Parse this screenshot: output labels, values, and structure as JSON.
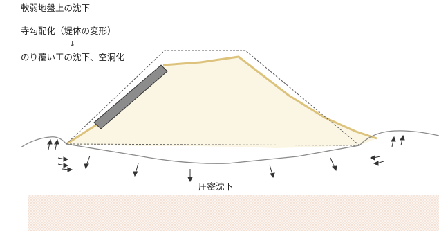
{
  "labels": {
    "title": "軟弱地盤上の沈下",
    "subtitle": "寺勾配化（堤体の変形）",
    "arrow": "↓",
    "overlay": "のり覆い工の沈下、空洞化",
    "consolidation": "圧密沈下"
  },
  "colors": {
    "embankment_fill": "#fbf6e4",
    "embankment_edge": "#dcc27a",
    "ground_line": "#8a8a8a",
    "original_outline": "#555555",
    "revetment_fill": "#8c8c8c",
    "subsoil_pattern": "#f3e1d6"
  }
}
